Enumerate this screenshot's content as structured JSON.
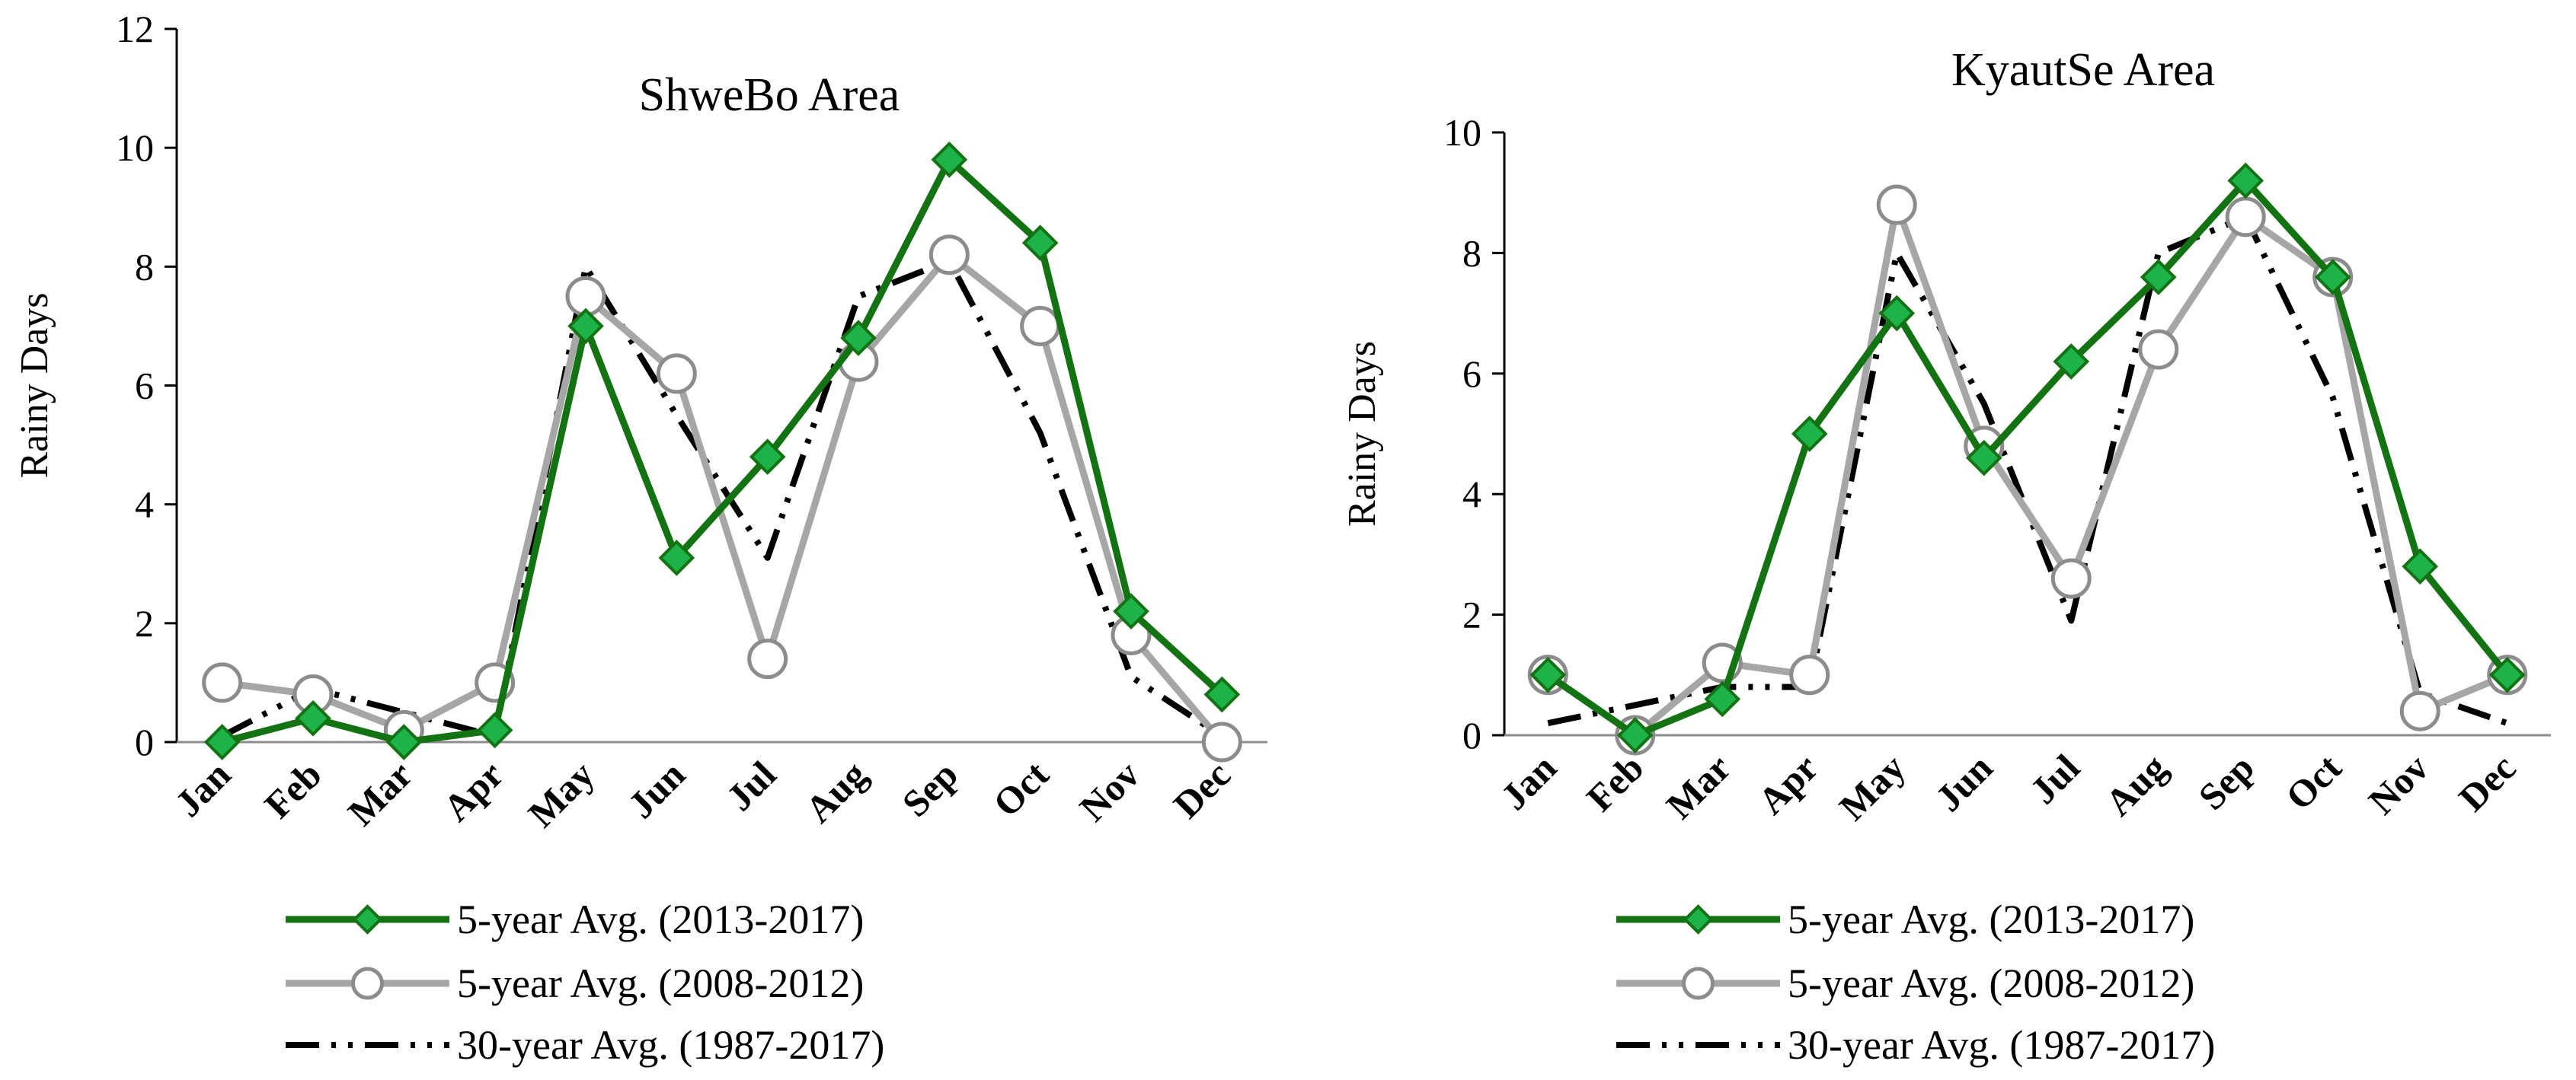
{
  "chart_data": [
    {
      "type": "line",
      "title": "ShweBo Area",
      "xlabel": "",
      "ylabel": "Rainy Days",
      "ylim": [
        0,
        12
      ],
      "yticks": [
        0,
        2,
        4,
        6,
        8,
        10,
        12
      ],
      "categories": [
        "Jan",
        "Feb",
        "Mar",
        "Apr",
        "May",
        "Jun",
        "Jul",
        "Aug",
        "Sep",
        "Oct",
        "Nov",
        "Dec"
      ],
      "series": [
        {
          "name": "5-year Avg. (2013-2017)",
          "color": "#137313",
          "marker": "diamond",
          "style": "solid",
          "values": [
            0.0,
            0.4,
            0.0,
            0.2,
            7.0,
            3.1,
            4.8,
            6.8,
            9.8,
            8.4,
            2.2,
            0.8
          ]
        },
        {
          "name": "5-year Avg. (2008-2012)",
          "color": "#a6a6a6",
          "marker": "circle",
          "style": "solid",
          "values": [
            1.0,
            0.8,
            0.2,
            1.0,
            7.5,
            6.2,
            1.4,
            6.4,
            8.2,
            7.0,
            1.8,
            0.0
          ]
        },
        {
          "name": "30-year Avg. (1987-2017)",
          "color": "#000000",
          "marker": "none",
          "style": "dash-dot-dot",
          "values": [
            0.1,
            0.9,
            0.5,
            0.1,
            8.0,
            5.5,
            3.1,
            7.5,
            8.1,
            5.2,
            1.1,
            0.1
          ]
        }
      ]
    },
    {
      "type": "line",
      "title": "KyautSe Area",
      "xlabel": "",
      "ylabel": "Rainy Days",
      "ylim": [
        0,
        10
      ],
      "yticks": [
        0,
        2,
        4,
        6,
        8,
        10
      ],
      "categories": [
        "Jan",
        "Feb",
        "Mar",
        "Apr",
        "May",
        "Jun",
        "Jul",
        "Aug",
        "Sep",
        "Oct",
        "Nov",
        "Dec"
      ],
      "series": [
        {
          "name": "5-year Avg. (2013-2017)",
          "color": "#137313",
          "marker": "diamond",
          "style": "solid",
          "values": [
            1.0,
            0.0,
            0.6,
            5.0,
            7.0,
            4.6,
            6.2,
            7.6,
            9.2,
            7.6,
            2.8,
            1.0
          ]
        },
        {
          "name": "5-year Avg. (2008-2012)",
          "color": "#a6a6a6",
          "marker": "circle",
          "style": "solid",
          "values": [
            1.0,
            0.0,
            1.2,
            1.0,
            8.8,
            4.8,
            2.6,
            6.4,
            8.6,
            7.6,
            0.4,
            1.0
          ]
        },
        {
          "name": "30-year Avg. (1987-2017)",
          "color": "#000000",
          "marker": "none",
          "style": "dash-dot-dot",
          "values": [
            0.2,
            0.5,
            0.8,
            0.8,
            8.0,
            5.5,
            1.9,
            8.0,
            8.6,
            5.6,
            0.7,
            0.2
          ]
        }
      ]
    }
  ]
}
